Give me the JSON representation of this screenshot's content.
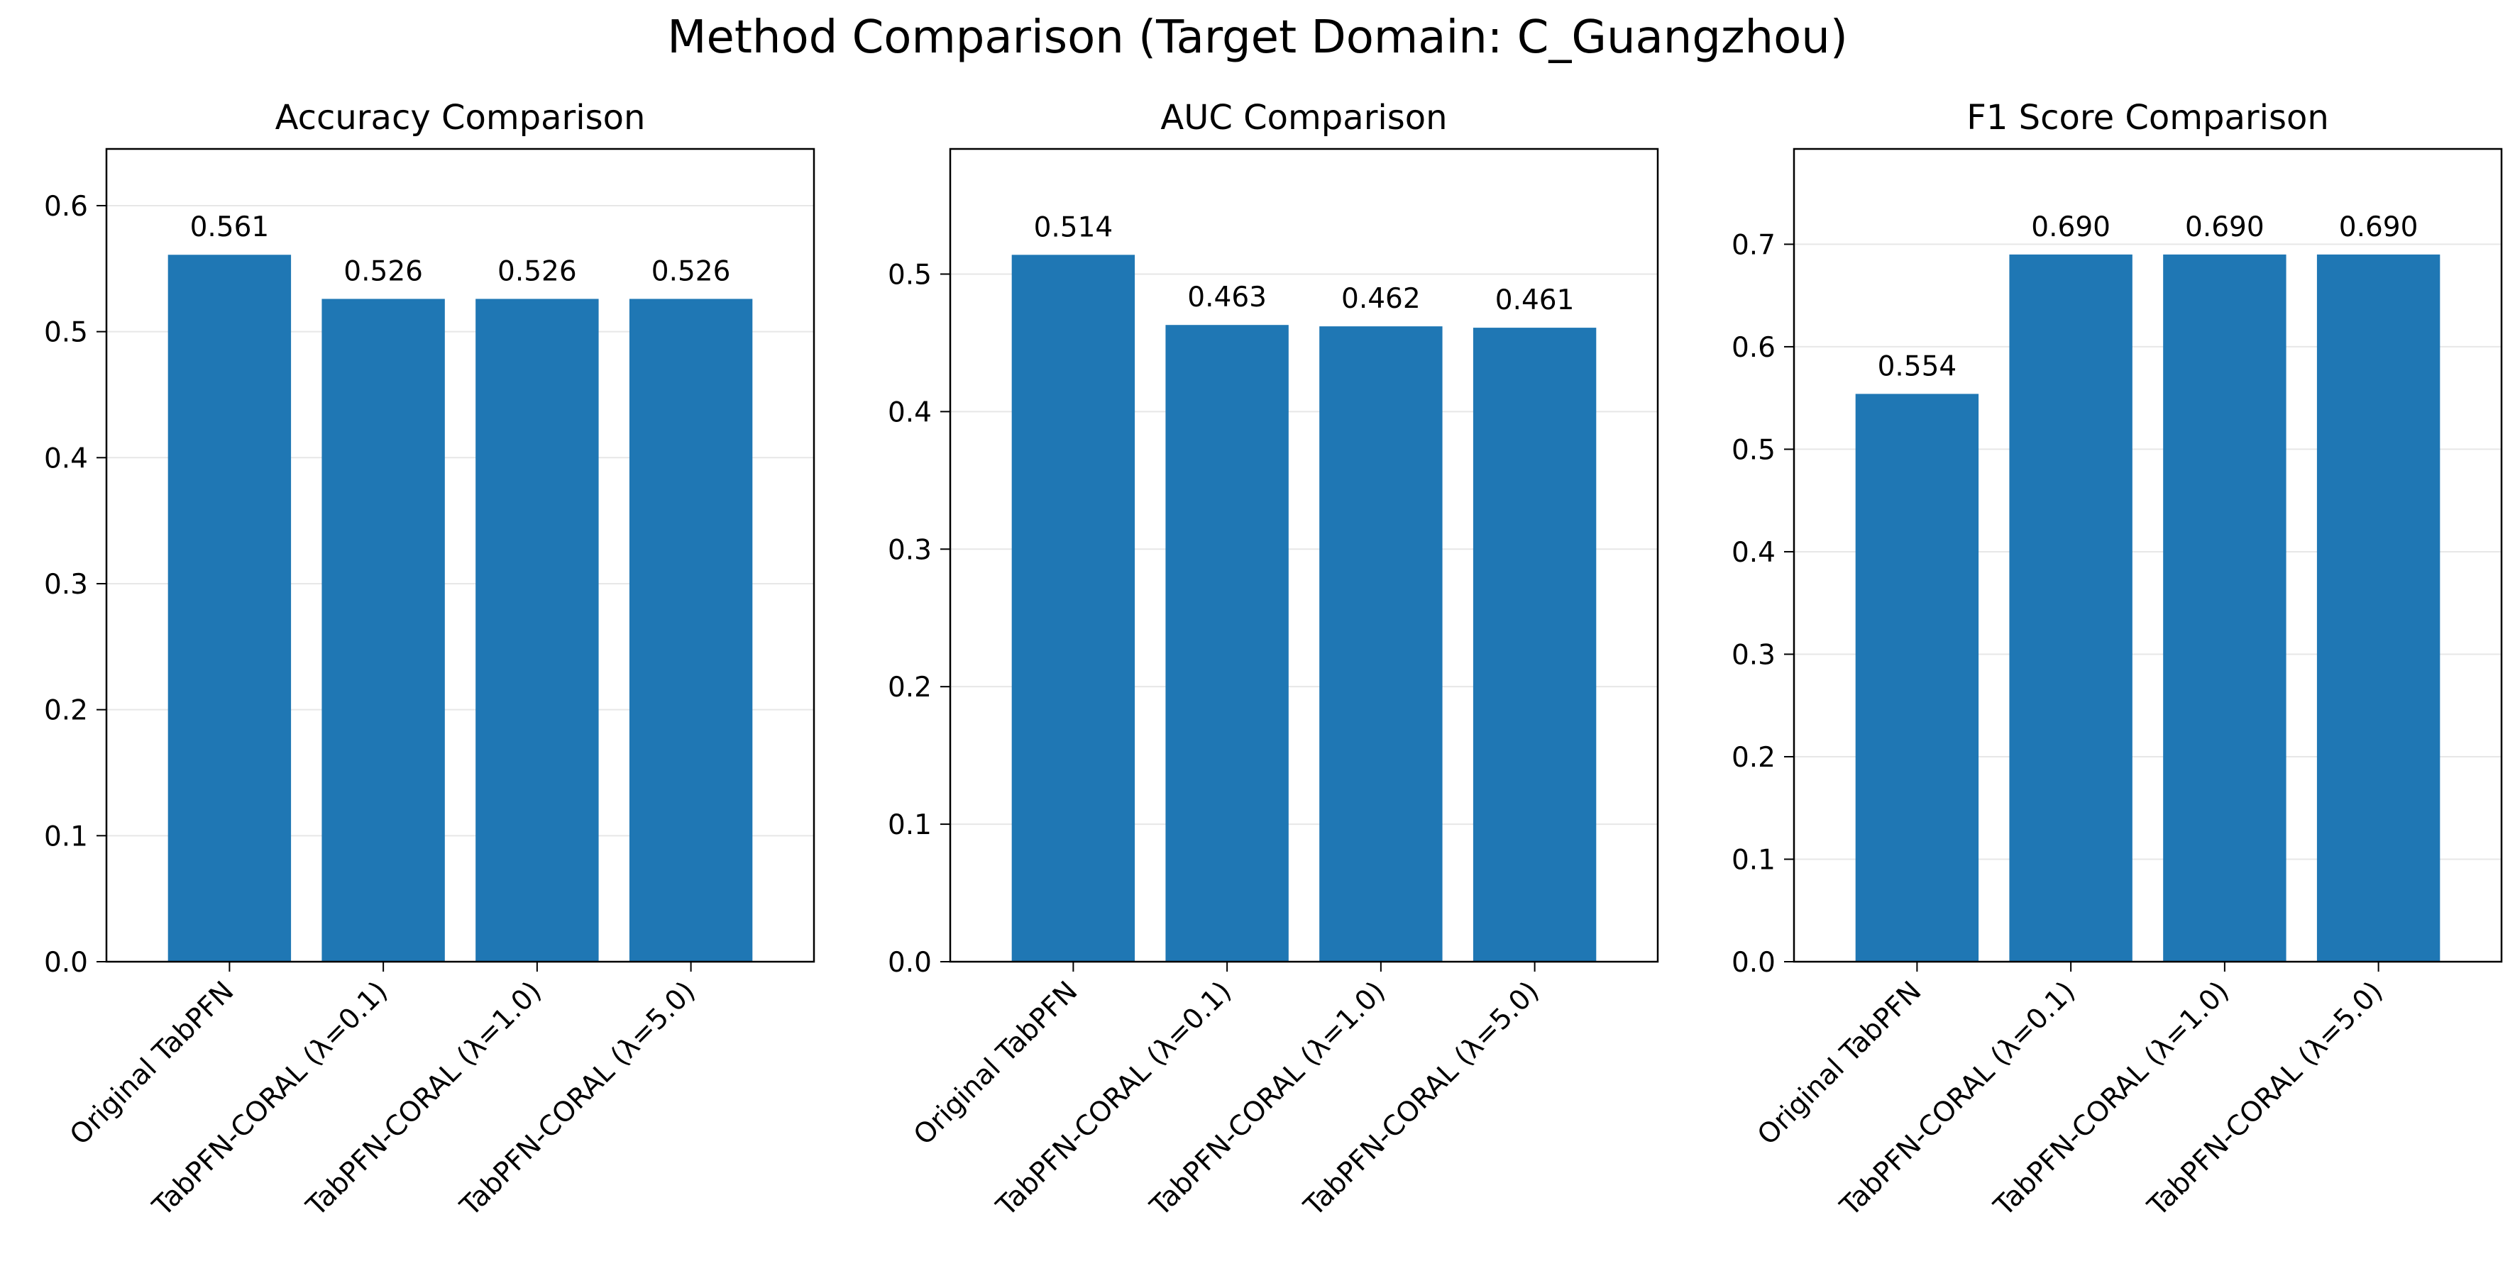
{
  "figure": {
    "title": "Method Comparison (Target Domain: C_Guangzhou)"
  },
  "chart_data": [
    {
      "type": "bar",
      "title": "Accuracy Comparison",
      "xlabel": "",
      "ylabel": "",
      "categories": [
        "Original TabPFN",
        "TabPFN-CORAL (λ=0.1)",
        "TabPFN-CORAL (λ=1.0)",
        "TabPFN-CORAL (λ=5.0)"
      ],
      "values": [
        0.561,
        0.526,
        0.526,
        0.526
      ],
      "value_labels": [
        "0.561",
        "0.526",
        "0.526",
        "0.526"
      ],
      "ylim": [
        0,
        0.645
      ],
      "yticks": [
        0.0,
        0.1,
        0.2,
        0.3,
        0.4,
        0.5,
        0.6
      ],
      "ytick_labels": [
        "0.0",
        "0.1",
        "0.2",
        "0.3",
        "0.4",
        "0.5",
        "0.6"
      ],
      "grid": "y",
      "color": "#1f77b4"
    },
    {
      "type": "bar",
      "title": "AUC Comparison",
      "xlabel": "",
      "ylabel": "",
      "categories": [
        "Original TabPFN",
        "TabPFN-CORAL (λ=0.1)",
        "TabPFN-CORAL (λ=1.0)",
        "TabPFN-CORAL (λ=5.0)"
      ],
      "values": [
        0.514,
        0.463,
        0.462,
        0.461
      ],
      "value_labels": [
        "0.514",
        "0.463",
        "0.462",
        "0.461"
      ],
      "ylim": [
        0,
        0.591
      ],
      "yticks": [
        0.0,
        0.1,
        0.2,
        0.3,
        0.4,
        0.5
      ],
      "ytick_labels": [
        "0.0",
        "0.1",
        "0.2",
        "0.3",
        "0.4",
        "0.5"
      ],
      "grid": "y",
      "color": "#1f77b4"
    },
    {
      "type": "bar",
      "title": "F1 Score Comparison",
      "xlabel": "",
      "ylabel": "",
      "categories": [
        "Original TabPFN",
        "TabPFN-CORAL (λ=0.1)",
        "TabPFN-CORAL (λ=1.0)",
        "TabPFN-CORAL (λ=5.0)"
      ],
      "values": [
        0.554,
        0.69,
        0.69,
        0.69
      ],
      "value_labels": [
        "0.554",
        "0.690",
        "0.690",
        "0.690"
      ],
      "ylim": [
        0,
        0.793
      ],
      "yticks": [
        0.0,
        0.1,
        0.2,
        0.3,
        0.4,
        0.5,
        0.6,
        0.7
      ],
      "ytick_labels": [
        "0.0",
        "0.1",
        "0.2",
        "0.3",
        "0.4",
        "0.5",
        "0.6",
        "0.7"
      ],
      "grid": "y",
      "color": "#1f77b4"
    }
  ]
}
